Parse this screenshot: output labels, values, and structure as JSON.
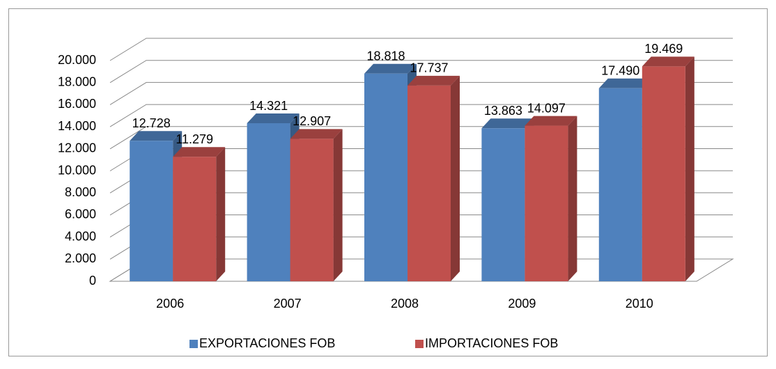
{
  "chart_data": {
    "type": "bar3d",
    "categories": [
      "2006",
      "2007",
      "2008",
      "2009",
      "2010"
    ],
    "series": [
      {
        "name": "EXPORTACIONES FOB",
        "color": "#4f81bd",
        "values": [
          12728,
          14321,
          18818,
          13863,
          17490
        ],
        "value_labels": [
          "12.728",
          "14.321",
          "18.818",
          "13.863",
          "17.490"
        ]
      },
      {
        "name": "IMPORTACIONES FOB",
        "color": "#c0504d",
        "values": [
          11279,
          12907,
          17737,
          14097,
          19469
        ],
        "value_labels": [
          "11.279",
          "12.907",
          "17.737",
          "14.097",
          "19.469"
        ]
      }
    ],
    "ylim": [
      0,
      20000
    ],
    "yticks": [
      0,
      {
        "value": 2000,
        "label": "2.000"
      },
      {
        "value": 4000,
        "label": "4.000"
      },
      {
        "value": 6000,
        "label": "6.000"
      },
      {
        "value": 8000,
        "label": "8.000"
      },
      {
        "value": 10000,
        "label": "10.000"
      },
      {
        "value": 12000,
        "label": "12.000"
      },
      {
        "value": 14000,
        "label": "14.000"
      },
      {
        "value": 16000,
        "label": "16.000"
      },
      {
        "value": 18000,
        "label": "18.000"
      },
      {
        "value": 20000,
        "label": "20.000"
      }
    ],
    "grid": true,
    "legend": "bottom"
  }
}
